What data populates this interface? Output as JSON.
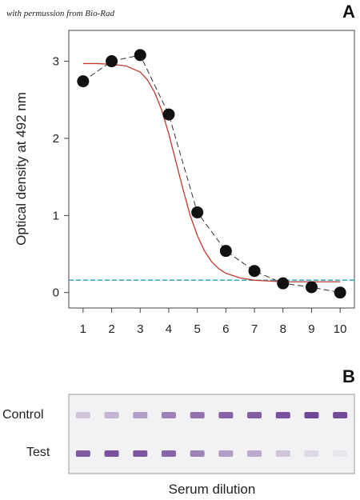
{
  "permission_note": "with permussion from Bio-Rad",
  "panel_a_letter": "A",
  "panel_b_letter": "B",
  "colors": {
    "points": "#111111",
    "dashed_connector": "#333333",
    "fit_curve": "#c0392b",
    "cutoff_line": "#3aa6c4",
    "band_color": "#5b2a86"
  },
  "chart_data": [
    {
      "type": "scatter",
      "title": "",
      "xlabel": "",
      "ylabel": "Optical density at  492 nm",
      "xlim": [
        0.5,
        10.5
      ],
      "ylim": [
        -0.2,
        3.4
      ],
      "x_ticks": [
        1,
        2,
        3,
        4,
        5,
        6,
        7,
        8,
        9,
        10
      ],
      "y_ticks": [
        0,
        1,
        2,
        3
      ],
      "grid": false,
      "series": [
        {
          "style": "points-with-dashed-connector",
          "x": [
            1,
            2,
            3,
            4,
            5,
            6,
            7,
            8,
            9,
            10
          ],
          "y": [
            2.74,
            3.0,
            3.08,
            2.31,
            1.04,
            0.54,
            0.28,
            0.12,
            0.07,
            0.0
          ]
        },
        {
          "style": "fitted-sigmoid-curve",
          "x": [
            1,
            1.5,
            2,
            2.5,
            3,
            3.25,
            3.5,
            3.75,
            4,
            4.25,
            4.5,
            4.75,
            5,
            5.25,
            5.5,
            5.75,
            6,
            6.5,
            7,
            7.5,
            8,
            9,
            10
          ],
          "y": [
            2.97,
            2.97,
            2.96,
            2.94,
            2.86,
            2.76,
            2.6,
            2.37,
            2.06,
            1.7,
            1.34,
            1.0,
            0.74,
            0.54,
            0.4,
            0.31,
            0.25,
            0.19,
            0.16,
            0.15,
            0.14,
            0.14,
            0.14
          ]
        }
      ],
      "cutoff_y": 0.16
    },
    {
      "type": "heatmap",
      "xlabel": "Serum dilution",
      "rows": [
        "Control",
        "Test"
      ],
      "columns": 10,
      "intensity": [
        [
          0.22,
          0.3,
          0.42,
          0.56,
          0.64,
          0.72,
          0.74,
          0.8,
          0.86,
          0.84
        ],
        [
          0.76,
          0.8,
          0.78,
          0.7,
          0.56,
          0.42,
          0.36,
          0.22,
          0.12,
          0.05
        ]
      ]
    }
  ]
}
